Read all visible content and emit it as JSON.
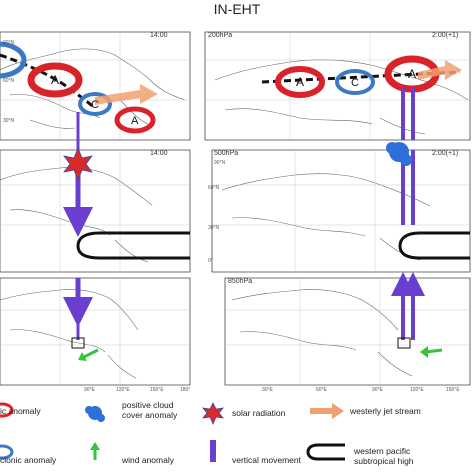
{
  "title": "IN-EHT",
  "colors": {
    "anticyclone": "#d9222a",
    "cyclone": "#3b78c6",
    "vertical": "#6a3fd0",
    "wind": "#34c53a",
    "jet": "#f0a070",
    "cloud": "#2f6fd9",
    "solar": "#d92a2a",
    "trough": "#111111",
    "map": "#666666"
  },
  "left_panels": {
    "top": {
      "time": "14:00"
    },
    "middle": {
      "time": "14:00"
    }
  },
  "right_panels": {
    "top": {
      "level": "200hPa",
      "time": "2:00(+1)"
    },
    "middle": {
      "level": "500hPa",
      "time": "2:00(+1)"
    },
    "bottom": {
      "level": "850hPa"
    }
  },
  "anomaly_labels": {
    "left_top": [
      "A",
      "A",
      "C",
      "A"
    ],
    "right_top": [
      "A",
      "C",
      "A"
    ]
  },
  "grid_labels": {
    "lat_top": [
      "30°N",
      "60°N",
      "90°N"
    ],
    "lat_mid": [
      "0°",
      "30°N",
      "60°N",
      "90°N"
    ],
    "lon_left": [
      "90°E",
      "120°E",
      "150°E",
      "180°"
    ],
    "lon_right": [
      "30°E",
      "60°E",
      "90°E",
      "120°E",
      "150°E"
    ]
  },
  "legend": {
    "items": [
      {
        "icon": "anticyclonic-anomaly-icon",
        "label": "ic anomaly"
      },
      {
        "icon": "positive-cloud-cover-icon",
        "label": "positive cloud\ncover anomaly"
      },
      {
        "icon": "solar-radiation-icon",
        "label": "solar radiation"
      },
      {
        "icon": "westerly-jet-stream-icon",
        "label": "westerly jet stream"
      },
      {
        "icon": "cyclonic-anomaly-icon",
        "label": "clonic anomaly"
      },
      {
        "icon": "wind-anomaly-icon",
        "label": "wind anomaly"
      },
      {
        "icon": "vertical-movement-icon",
        "label": "vertical movement"
      },
      {
        "icon": "western-pacific-subtropical-high-icon",
        "label": "western pacific\nsubtropical high"
      }
    ]
  }
}
